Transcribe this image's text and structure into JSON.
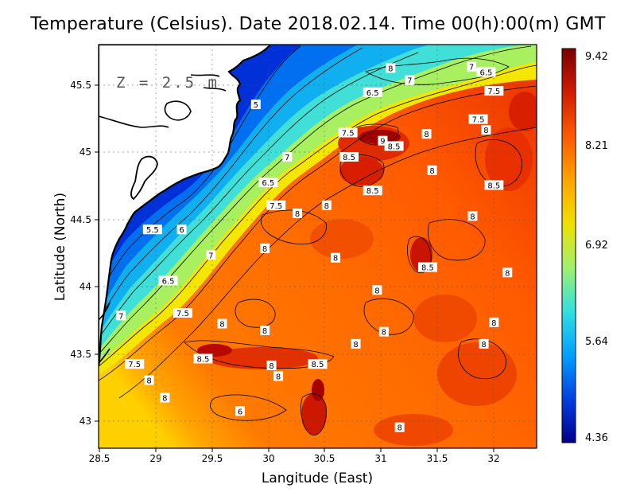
{
  "title": "Temperature (Celsius). Date 2018.02.14. Time 00(h):00(m) GMT",
  "depth_label": "Z = 2.5 m",
  "x_axis": {
    "title": "Langitude (East)",
    "ticks": [
      "28.5",
      "29",
      "29.5",
      "30",
      "30.5",
      "31",
      "31.5",
      "32"
    ],
    "range": [
      28.5,
      32.4
    ]
  },
  "y_axis": {
    "title": "Latitude (North)",
    "ticks": [
      "43",
      "43.5",
      "44",
      "44.5",
      "45",
      "45.5"
    ],
    "range": [
      42.8,
      45.8
    ]
  },
  "colorbar": {
    "labels": [
      "9.42",
      "8.21",
      "6.92",
      "5.64",
      "4.36"
    ],
    "min": 4.36,
    "max": 9.42,
    "colors": [
      "#7a0000",
      "#d01c00",
      "#ff5a00",
      "#ffa400",
      "#f0e000",
      "#a0f070",
      "#30e0e0",
      "#00a0ff",
      "#0040e0",
      "#00008a"
    ]
  },
  "contour_labels": [
    {
      "text": "8",
      "lon": 31.1,
      "lat": 45.62
    },
    {
      "text": "7",
      "lon": 31.82,
      "lat": 45.63
    },
    {
      "text": "6.5",
      "lon": 31.95,
      "lat": 45.59
    },
    {
      "text": "7",
      "lon": 31.27,
      "lat": 45.53
    },
    {
      "text": "6.5",
      "lon": 30.94,
      "lat": 45.44
    },
    {
      "text": "7.5",
      "lon": 32.02,
      "lat": 45.45
    },
    {
      "text": "5",
      "lon": 29.9,
      "lat": 45.35
    },
    {
      "text": "7.5",
      "lon": 31.88,
      "lat": 45.24
    },
    {
      "text": "8",
      "lon": 31.95,
      "lat": 45.16
    },
    {
      "text": "7.5",
      "lon": 30.72,
      "lat": 45.14
    },
    {
      "text": "9",
      "lon": 31.03,
      "lat": 45.08
    },
    {
      "text": "8.5",
      "lon": 31.13,
      "lat": 45.04
    },
    {
      "text": "8",
      "lon": 31.42,
      "lat": 45.13
    },
    {
      "text": "7",
      "lon": 30.18,
      "lat": 44.96
    },
    {
      "text": "8.5",
      "lon": 30.73,
      "lat": 44.96
    },
    {
      "text": "8",
      "lon": 31.47,
      "lat": 44.86
    },
    {
      "text": "6.5",
      "lon": 30.01,
      "lat": 44.77
    },
    {
      "text": "8.5",
      "lon": 32.02,
      "lat": 44.75
    },
    {
      "text": "8.5",
      "lon": 30.94,
      "lat": 44.71
    },
    {
      "text": "7.5",
      "lon": 30.08,
      "lat": 44.6
    },
    {
      "text": "8",
      "lon": 30.27,
      "lat": 44.54
    },
    {
      "text": "8",
      "lon": 30.53,
      "lat": 44.6
    },
    {
      "text": "8",
      "lon": 31.83,
      "lat": 44.52
    },
    {
      "text": "5.5",
      "lon": 28.98,
      "lat": 44.42
    },
    {
      "text": "6",
      "lon": 29.24,
      "lat": 44.42
    },
    {
      "text": "8",
      "lon": 29.98,
      "lat": 44.28
    },
    {
      "text": "7",
      "lon": 29.5,
      "lat": 44.23
    },
    {
      "text": "8",
      "lon": 30.61,
      "lat": 44.21
    },
    {
      "text": "8.5",
      "lon": 31.43,
      "lat": 44.14
    },
    {
      "text": "8",
      "lon": 32.14,
      "lat": 44.1
    },
    {
      "text": "6.5",
      "lon": 29.12,
      "lat": 44.04
    },
    {
      "text": "8",
      "lon": 30.98,
      "lat": 43.97
    },
    {
      "text": "7.5",
      "lon": 29.25,
      "lat": 43.8
    },
    {
      "text": "7",
      "lon": 28.7,
      "lat": 43.78
    },
    {
      "text": "8",
      "lon": 29.6,
      "lat": 43.72
    },
    {
      "text": "8",
      "lon": 29.98,
      "lat": 43.67
    },
    {
      "text": "8",
      "lon": 31.04,
      "lat": 43.66
    },
    {
      "text": "8",
      "lon": 32.02,
      "lat": 43.73
    },
    {
      "text": "8",
      "lon": 30.79,
      "lat": 43.57
    },
    {
      "text": "8",
      "lon": 31.93,
      "lat": 43.57
    },
    {
      "text": "8.5",
      "lon": 29.43,
      "lat": 43.46
    },
    {
      "text": "7.5",
      "lon": 28.82,
      "lat": 43.42
    },
    {
      "text": "8",
      "lon": 30.04,
      "lat": 43.41
    },
    {
      "text": "8.5",
      "lon": 30.45,
      "lat": 43.42
    },
    {
      "text": "8",
      "lon": 28.95,
      "lat": 43.3
    },
    {
      "text": "8",
      "lon": 30.1,
      "lat": 43.33
    },
    {
      "text": "8",
      "lon": 29.09,
      "lat": 43.17
    },
    {
      "text": "6",
      "lon": 29.76,
      "lat": 43.07
    },
    {
      "text": "8",
      "lon": 31.18,
      "lat": 42.95
    }
  ]
}
